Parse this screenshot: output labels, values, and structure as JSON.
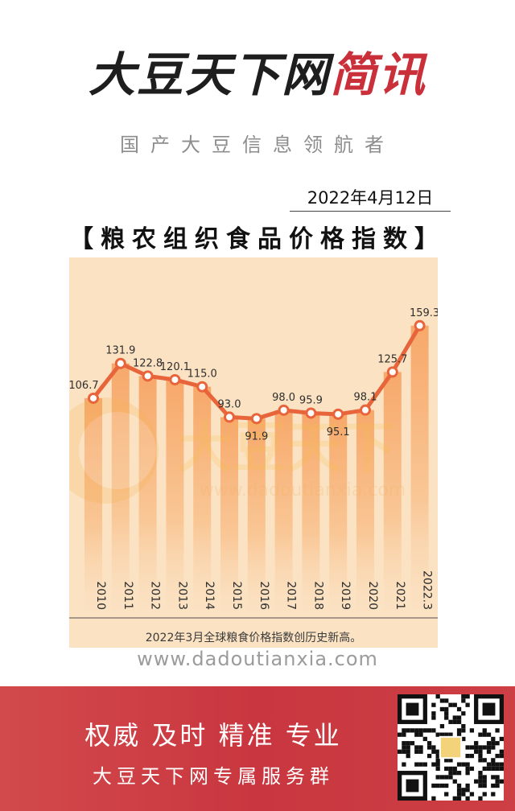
{
  "header": {
    "brand_main": "大豆天下网",
    "brand_accent": "简讯",
    "tagline": "国产大豆信息领航者",
    "date": "2022年4月12日",
    "title": "【粮农组织食品价格指数】"
  },
  "colors": {
    "brand_accent": "#c9303a",
    "line": "#e8643a",
    "bar_top": "#f7a86a",
    "banner": "#c9363f"
  },
  "chart_data": {
    "type": "bar",
    "categories": [
      "2010",
      "2011",
      "2012",
      "2013",
      "2014",
      "2015",
      "2016",
      "2017",
      "2018",
      "2019",
      "2020",
      "2021",
      "2022.3"
    ],
    "values": [
      106.7,
      131.9,
      122.8,
      120.1,
      115.0,
      93.0,
      91.9,
      98.0,
      95.9,
      95.1,
      98.1,
      125.7,
      159.3
    ],
    "value_labels": [
      "106.7",
      "131.9",
      "122.8",
      "120.1",
      "115.0",
      "93.0",
      "91.9",
      "98.0",
      "95.9",
      "95.1",
      "98.1",
      "125.7",
      "159.3"
    ],
    "caption": "2022年3月全球粮食价格指数创历史新高。",
    "title": "",
    "xlabel": "",
    "ylabel": "",
    "ylim": [
      0,
      175
    ],
    "grid": false,
    "watermark": "www.dadoutianxia.com"
  },
  "footer": {
    "website": "www.dadoutianxia.com",
    "slogan": "权威 及时 精准 专业",
    "service": "大豆天下网专属服务群",
    "qr_icon": "qr-code-icon"
  }
}
